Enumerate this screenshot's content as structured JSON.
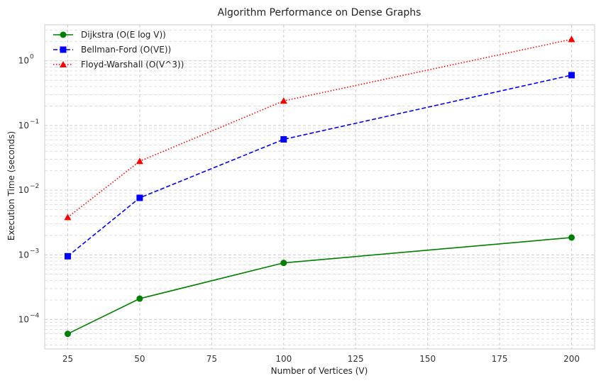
{
  "chart_data": {
    "type": "line",
    "title": "Algorithm Performance on Dense Graphs",
    "xlabel": "Number of Vertices (V)",
    "ylabel": "Execution Time (seconds)",
    "x": [
      25,
      50,
      100,
      200
    ],
    "xlim": [
      17,
      208
    ],
    "ylim": [
      3.5e-05,
      3.6
    ],
    "yscale": "log",
    "xticks": [
      25,
      50,
      75,
      100,
      125,
      150,
      175,
      200
    ],
    "yticks": [
      {
        "value": 0.0001,
        "base": "10",
        "exp": "−4"
      },
      {
        "value": 0.001,
        "base": "10",
        "exp": "−3"
      },
      {
        "value": 0.01,
        "base": "10",
        "exp": "−2"
      },
      {
        "value": 0.1,
        "base": "10",
        "exp": "−1"
      },
      {
        "value": 1,
        "base": "10",
        "exp": "0"
      }
    ],
    "grid": true,
    "legend_position": "top-left",
    "series": [
      {
        "name": "Dijkstra (O(E log V))",
        "values": [
          6e-05,
          0.00021,
          0.00075,
          0.00185
        ],
        "color": "#008000",
        "linestyle": "solid",
        "marker": "circle"
      },
      {
        "name": "Bellman-Ford (O(VE))",
        "values": [
          0.00095,
          0.0076,
          0.061,
          0.6
        ],
        "color": "#0000ff",
        "linestyle": "dashed",
        "marker": "square"
      },
      {
        "name": "Floyd-Warshall (O(V^3))",
        "values": [
          0.0038,
          0.028,
          0.24,
          2.15
        ],
        "color": "#ff0000",
        "linestyle": "dotted",
        "marker": "triangle"
      }
    ]
  }
}
